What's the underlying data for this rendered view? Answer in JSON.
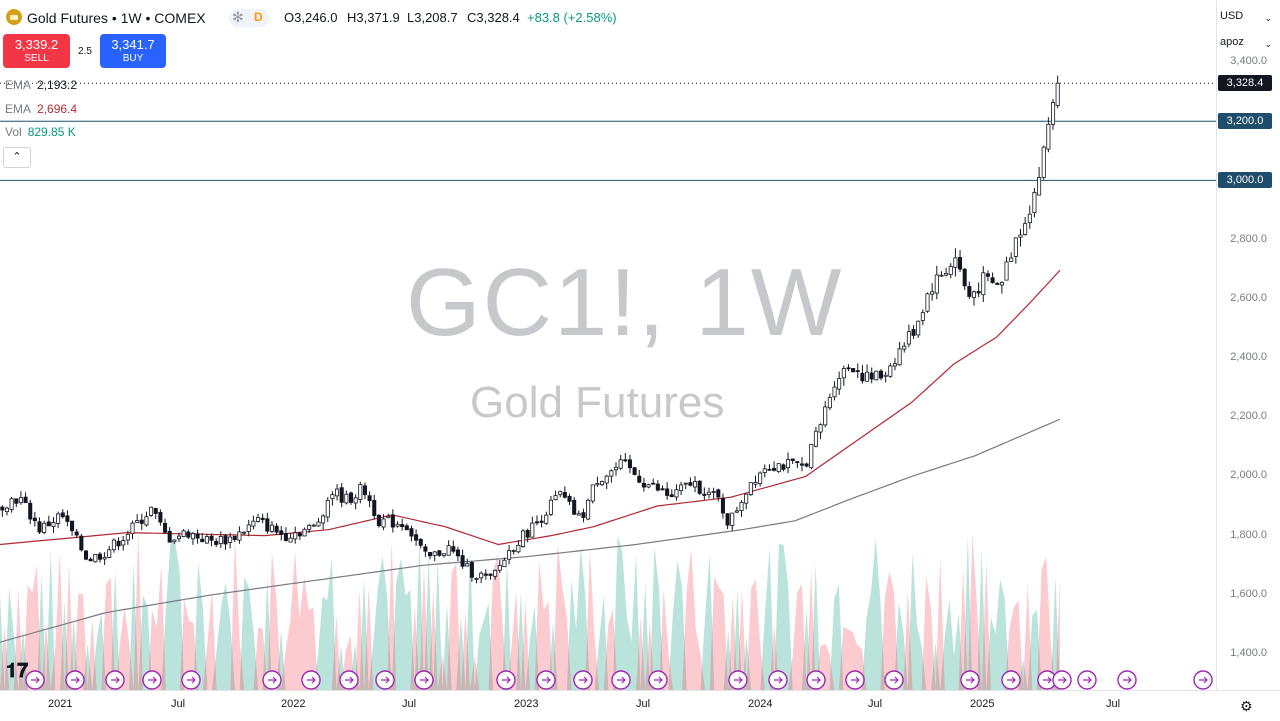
{
  "header": {
    "title": "Gold Futures • 1W • COMEX",
    "badge_d": "D",
    "ohlc": [
      {
        "k": "O",
        "v": "3,246.0"
      },
      {
        "k": "H",
        "v": "3,371.9"
      },
      {
        "k": "L",
        "v": "3,208.7"
      },
      {
        "k": "C",
        "v": "3,328.4"
      },
      {
        "k": "",
        "v": "+83.8 (+2.58%)"
      }
    ]
  },
  "trade": {
    "sell_price": "3,339.2",
    "sell_label": "SELL",
    "spread": "2.5",
    "buy_price": "3,341.7",
    "buy_label": "BUY"
  },
  "indicators": [
    {
      "name": "EMA",
      "value": "2,193.2",
      "color": "#131722"
    },
    {
      "name": "EMA",
      "value": "2,696.4",
      "color": "#b22833"
    },
    {
      "name": "Vol",
      "value": "829.85 K",
      "color": "#089981"
    }
  ],
  "watermark": {
    "symbol": "GC1!, 1W",
    "name": "Gold Futures"
  },
  "right_panel": {
    "currency": "USD",
    "mode": "apoz"
  },
  "colors": {
    "up": "#089981",
    "down": "#f23645",
    "accent": "#2962ff",
    "ema_slow": "#787b86",
    "ema_fast": "#b22833",
    "hline": "#1f4e6d"
  },
  "icons": [
    "gold-logo-icon",
    "snowflake-icon",
    "chevron-down-icon",
    "chevron-up-icon",
    "event-arrow-icon",
    "tradingview-logo-icon",
    "settings-icon"
  ],
  "chart_data": {
    "type": "candlestick",
    "interval": "1W",
    "ylim": [
      1300,
      3420
    ],
    "y_ticks": [
      1400,
      1600,
      1800,
      2000,
      2200,
      2400,
      2600,
      2800,
      3000,
      3200,
      3400
    ],
    "x_labels": [
      "2021",
      "Jul",
      "2022",
      "Jul",
      "2023",
      "Jul",
      "2024",
      "Jul",
      "2025",
      "Jul"
    ],
    "last_price": 3328.4,
    "last_price_label": "3,328.4",
    "horizontal_lines": [
      {
        "value": 3200,
        "label": "3,200.0"
      },
      {
        "value": 3000,
        "label": "3,000.0"
      }
    ],
    "anchors": [
      {
        "t": 0,
        "y": 1900
      },
      {
        "t": 0.02,
        "y": 1930
      },
      {
        "t": 0.04,
        "y": 1820
      },
      {
        "t": 0.06,
        "y": 1870
      },
      {
        "t": 0.085,
        "y": 1720
      },
      {
        "t": 0.1,
        "y": 1740
      },
      {
        "t": 0.12,
        "y": 1800
      },
      {
        "t": 0.145,
        "y": 1890
      },
      {
        "t": 0.16,
        "y": 1790
      },
      {
        "t": 0.18,
        "y": 1810
      },
      {
        "t": 0.2,
        "y": 1780
      },
      {
        "t": 0.22,
        "y": 1790
      },
      {
        "t": 0.245,
        "y": 1850
      },
      {
        "t": 0.27,
        "y": 1800
      },
      {
        "t": 0.3,
        "y": 1830
      },
      {
        "t": 0.315,
        "y": 1950
      },
      {
        "t": 0.33,
        "y": 1920
      },
      {
        "t": 0.345,
        "y": 1960
      },
      {
        "t": 0.36,
        "y": 1850
      },
      {
        "t": 0.385,
        "y": 1840
      },
      {
        "t": 0.405,
        "y": 1720
      },
      {
        "t": 0.425,
        "y": 1760
      },
      {
        "t": 0.445,
        "y": 1680
      },
      {
        "t": 0.465,
        "y": 1650
      },
      {
        "t": 0.485,
        "y": 1760
      },
      {
        "t": 0.51,
        "y": 1850
      },
      {
        "t": 0.53,
        "y": 1940
      },
      {
        "t": 0.55,
        "y": 1850
      },
      {
        "t": 0.565,
        "y": 1990
      },
      {
        "t": 0.59,
        "y": 2040
      },
      {
        "t": 0.61,
        "y": 1980
      },
      {
        "t": 0.635,
        "y": 1930
      },
      {
        "t": 0.655,
        "y": 1980
      },
      {
        "t": 0.68,
        "y": 1920
      },
      {
        "t": 0.69,
        "y": 1840
      },
      {
        "t": 0.71,
        "y": 1980
      },
      {
        "t": 0.725,
        "y": 2040
      },
      {
        "t": 0.74,
        "y": 2040
      },
      {
        "t": 0.76,
        "y": 2030
      },
      {
        "t": 0.775,
        "y": 2160
      },
      {
        "t": 0.79,
        "y": 2330
      },
      {
        "t": 0.805,
        "y": 2380
      },
      {
        "t": 0.82,
        "y": 2330
      },
      {
        "t": 0.835,
        "y": 2340
      },
      {
        "t": 0.85,
        "y": 2420
      },
      {
        "t": 0.865,
        "y": 2500
      },
      {
        "t": 0.88,
        "y": 2640
      },
      {
        "t": 0.895,
        "y": 2700
      },
      {
        "t": 0.905,
        "y": 2740
      },
      {
        "t": 0.915,
        "y": 2600
      },
      {
        "t": 0.93,
        "y": 2660
      },
      {
        "t": 0.945,
        "y": 2640
      },
      {
        "t": 0.96,
        "y": 2800
      },
      {
        "t": 0.975,
        "y": 2920
      },
      {
        "t": 0.985,
        "y": 3050
      },
      {
        "t": 0.993,
        "y": 3230
      },
      {
        "t": 1.0,
        "y": 3328.4
      }
    ],
    "ema_fast_anchors": [
      {
        "t": 0,
        "y": 1770
      },
      {
        "t": 0.12,
        "y": 1810
      },
      {
        "t": 0.25,
        "y": 1800
      },
      {
        "t": 0.31,
        "y": 1820
      },
      {
        "t": 0.37,
        "y": 1870
      },
      {
        "t": 0.42,
        "y": 1830
      },
      {
        "t": 0.47,
        "y": 1770
      },
      {
        "t": 0.52,
        "y": 1800
      },
      {
        "t": 0.56,
        "y": 1830
      },
      {
        "t": 0.62,
        "y": 1900
      },
      {
        "t": 0.69,
        "y": 1930
      },
      {
        "t": 0.76,
        "y": 2000
      },
      {
        "t": 0.8,
        "y": 2100
      },
      {
        "t": 0.86,
        "y": 2250
      },
      {
        "t": 0.9,
        "y": 2380
      },
      {
        "t": 0.94,
        "y": 2470
      },
      {
        "t": 0.97,
        "y": 2580
      },
      {
        "t": 1.0,
        "y": 2696.4
      }
    ],
    "ema_slow_anchors": [
      {
        "t": 0,
        "y": 1440
      },
      {
        "t": 0.1,
        "y": 1540
      },
      {
        "t": 0.2,
        "y": 1600
      },
      {
        "t": 0.3,
        "y": 1650
      },
      {
        "t": 0.4,
        "y": 1700
      },
      {
        "t": 0.5,
        "y": 1730
      },
      {
        "t": 0.6,
        "y": 1770
      },
      {
        "t": 0.7,
        "y": 1820
      },
      {
        "t": 0.75,
        "y": 1850
      },
      {
        "t": 0.8,
        "y": 1920
      },
      {
        "t": 0.86,
        "y": 2000
      },
      {
        "t": 0.92,
        "y": 2070
      },
      {
        "t": 1.0,
        "y": 2193.2
      }
    ],
    "volume_value": "829.85 K"
  }
}
